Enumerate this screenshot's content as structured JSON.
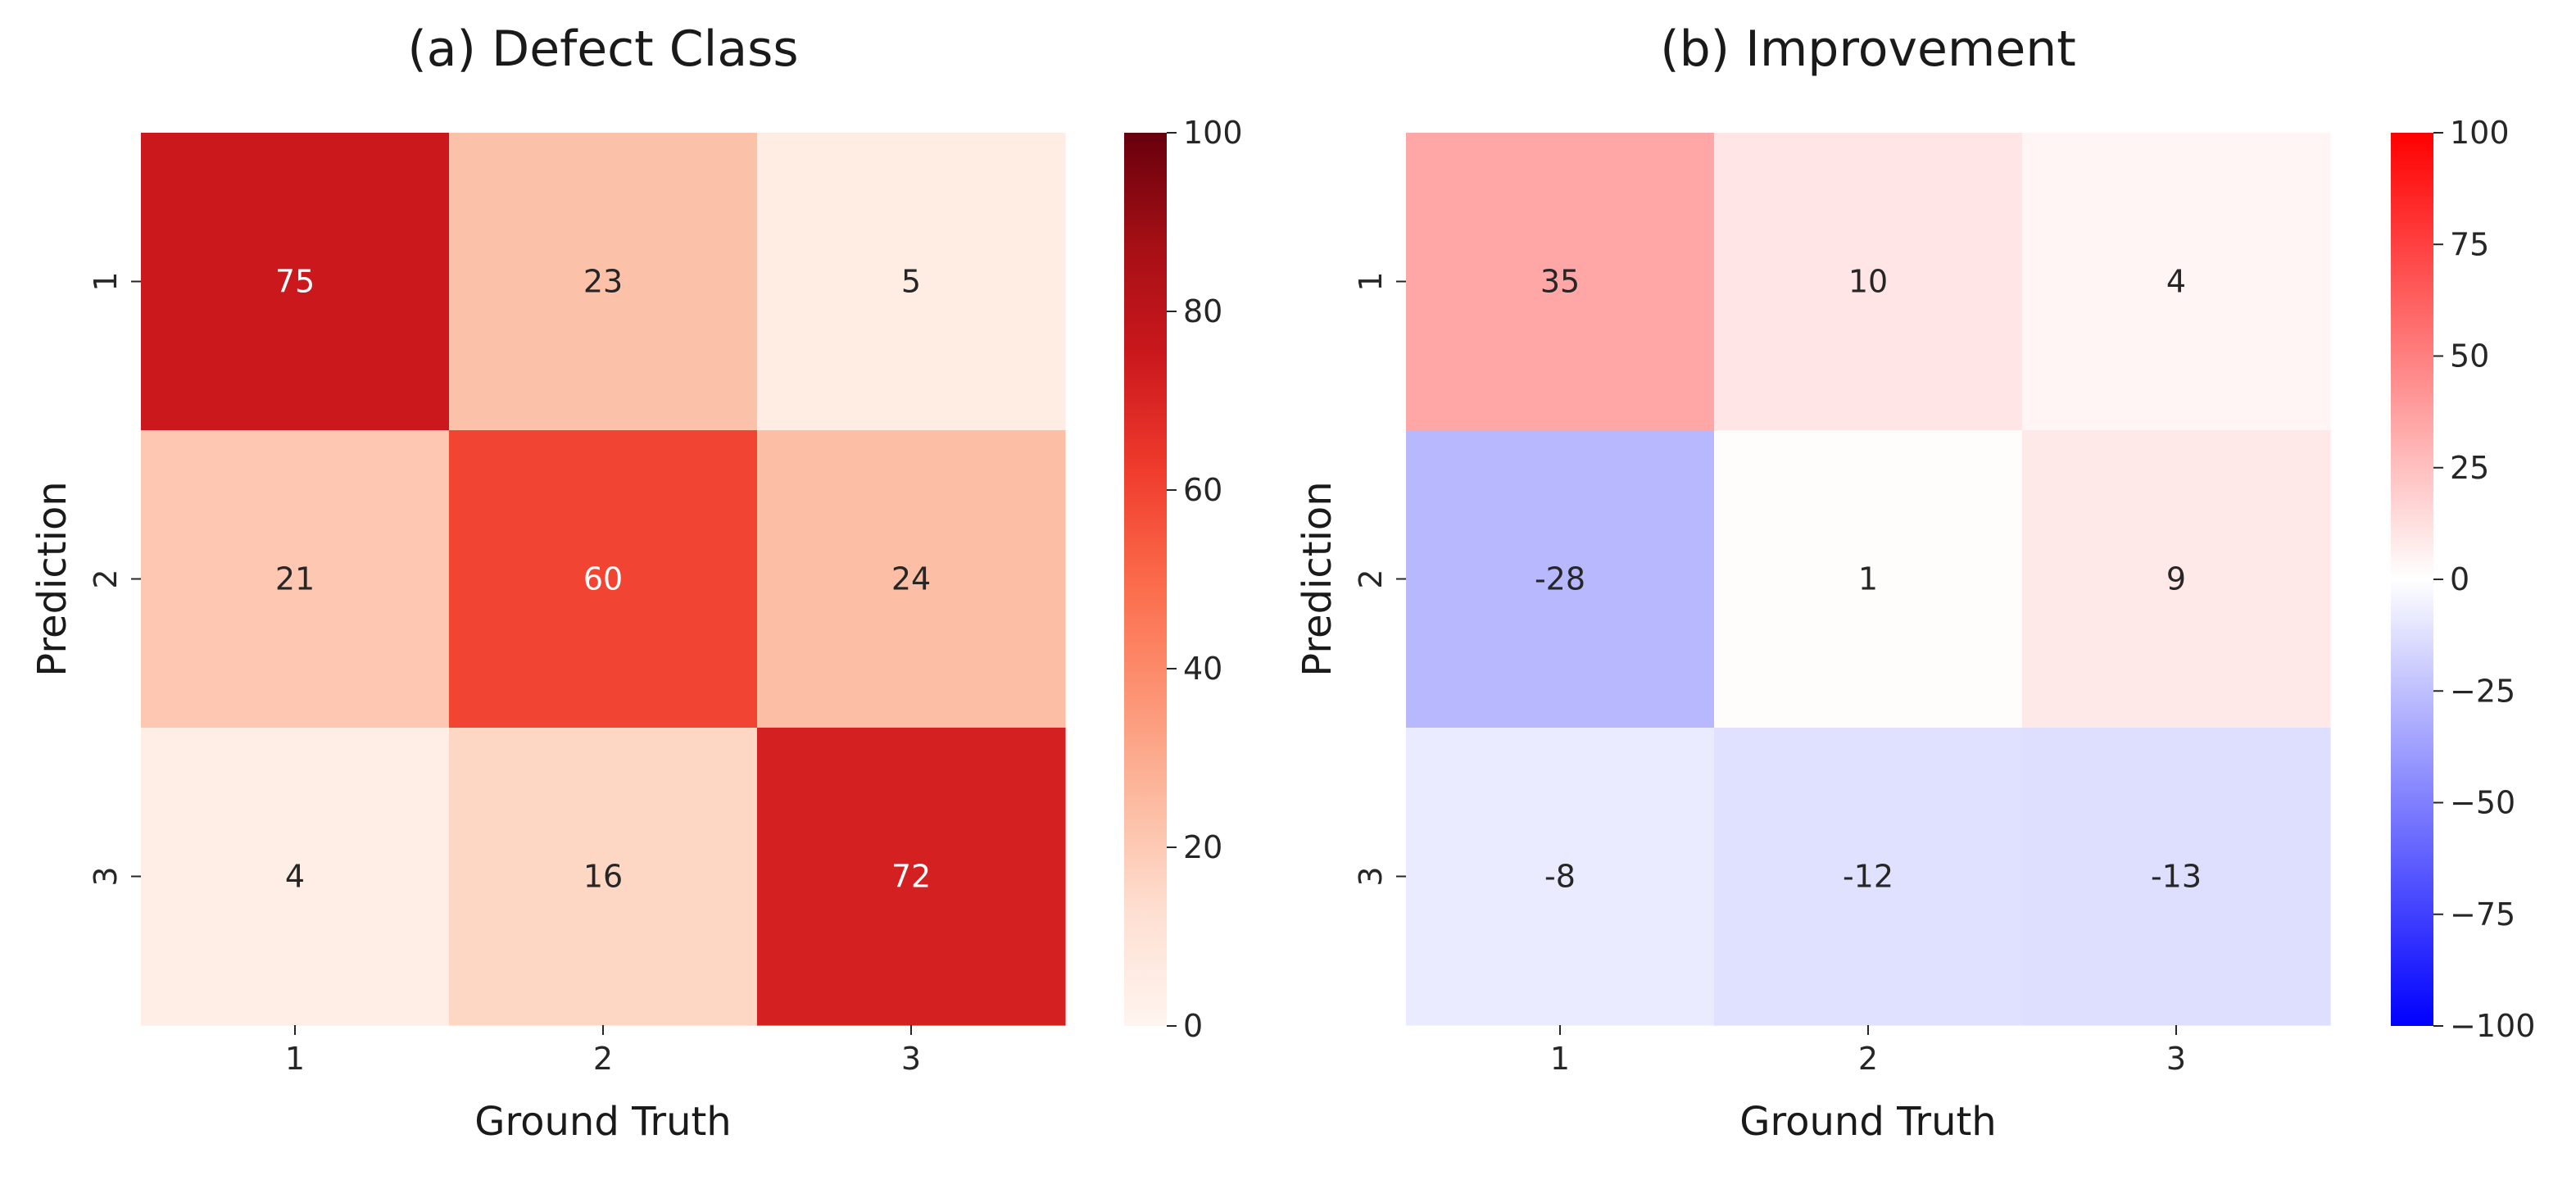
{
  "chart_data": [
    {
      "type": "heatmap",
      "title": "(a) Defect Class",
      "xlabel": "Ground Truth",
      "ylabel": "Prediction",
      "x_categories": [
        "1",
        "2",
        "3"
      ],
      "y_categories": [
        "1",
        "2",
        "3"
      ],
      "values": [
        [
          75,
          23,
          5
        ],
        [
          21,
          60,
          24
        ],
        [
          4,
          16,
          72
        ]
      ],
      "colormap": "Reds",
      "vmin": 0,
      "vmax": 100,
      "colorbar_ticks": [
        0,
        20,
        40,
        60,
        80,
        100
      ],
      "colorbar_tick_labels": [
        "0",
        "20",
        "40",
        "60",
        "80",
        "100"
      ]
    },
    {
      "type": "heatmap",
      "title": "(b) Improvement",
      "xlabel": "Ground Truth",
      "ylabel": "Prediction",
      "x_categories": [
        "1",
        "2",
        "3"
      ],
      "y_categories": [
        "1",
        "2",
        "3"
      ],
      "values": [
        [
          35,
          10,
          4
        ],
        [
          -28,
          1,
          9
        ],
        [
          -8,
          -12,
          -13
        ]
      ],
      "colormap": "bwr",
      "vmin": -100,
      "vmax": 100,
      "colorbar_ticks": [
        -100,
        -75,
        -50,
        -25,
        0,
        25,
        50,
        75,
        100
      ],
      "colorbar_tick_labels": [
        "−100",
        "−75",
        "−50",
        "−25",
        "0",
        "25",
        "50",
        "75",
        "100"
      ]
    }
  ]
}
